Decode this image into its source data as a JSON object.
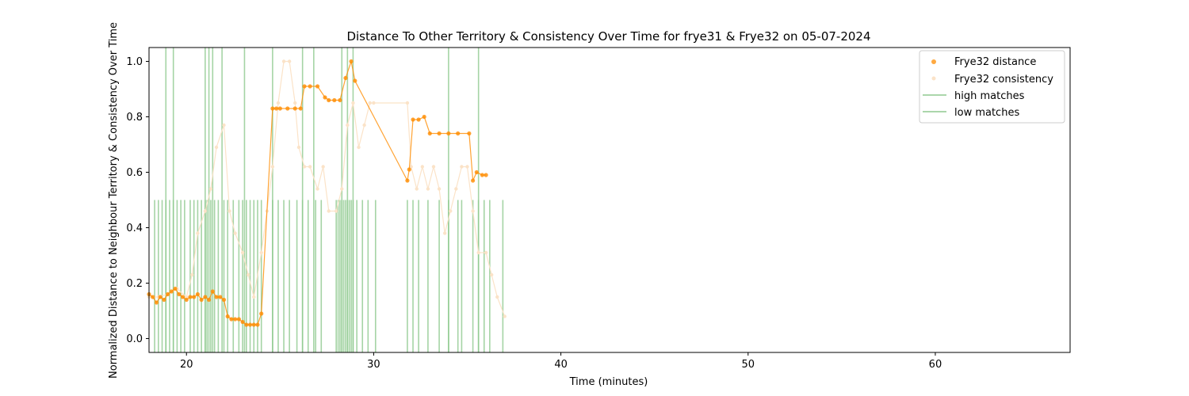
{
  "chart_data": {
    "type": "scatter",
    "title": "Distance To Other Territory & Consistency Over Time for frye31 & Frye32 on 05-07-2024",
    "xlabel": "Time (minutes)",
    "ylabel": "Normalized Distance to Neighbour Territory & Consistency Over Time",
    "xlim": [
      18,
      67.2
    ],
    "ylim": [
      -0.05,
      1.05
    ],
    "xticks": [
      20,
      30,
      40,
      50,
      60
    ],
    "yticks": [
      0.0,
      0.2,
      0.4,
      0.6,
      0.8,
      1.0
    ],
    "xtick_labels": [
      "20",
      "30",
      "40",
      "50",
      "60"
    ],
    "ytick_labels": [
      "0.0",
      "0.2",
      "0.4",
      "0.6",
      "0.8",
      "1.0"
    ],
    "grid": false,
    "legend_position": "top-right",
    "colors": {
      "distance": "#ff8c00",
      "consistency": "#fbe3c8",
      "matches": "#8fc98f"
    },
    "series": [
      {
        "name": "Frye32 distance",
        "kind": "scatter-line",
        "x": [
          18.0,
          18.2,
          18.4,
          18.6,
          18.8,
          19.0,
          19.2,
          19.4,
          19.6,
          19.8,
          20.0,
          20.2,
          20.4,
          20.6,
          20.8,
          21.0,
          21.2,
          21.4,
          21.6,
          21.8,
          22.0,
          22.2,
          22.4,
          22.6,
          22.8,
          23.0,
          23.2,
          23.4,
          23.6,
          23.8,
          24.0,
          24.6,
          24.8,
          25.0,
          25.4,
          25.8,
          26.1,
          26.3,
          26.6,
          27.0,
          27.4,
          27.6,
          27.9,
          28.2,
          28.5,
          28.8,
          29.0,
          31.8,
          31.9,
          32.1,
          32.4,
          32.7,
          33.0,
          33.5,
          34.0,
          34.5,
          35.1,
          35.3,
          35.5,
          35.8,
          36.0
        ],
        "y": [
          0.16,
          0.15,
          0.13,
          0.15,
          0.14,
          0.16,
          0.17,
          0.18,
          0.16,
          0.15,
          0.14,
          0.15,
          0.15,
          0.16,
          0.14,
          0.15,
          0.14,
          0.17,
          0.15,
          0.15,
          0.14,
          0.08,
          0.07,
          0.07,
          0.07,
          0.06,
          0.05,
          0.05,
          0.05,
          0.05,
          0.09,
          0.83,
          0.83,
          0.83,
          0.83,
          0.83,
          0.83,
          0.91,
          0.91,
          0.91,
          0.87,
          0.86,
          0.86,
          0.86,
          0.94,
          1.0,
          0.93,
          0.57,
          0.61,
          0.79,
          0.79,
          0.8,
          0.74,
          0.74,
          0.74,
          0.74,
          0.74,
          0.57,
          0.6,
          0.59,
          0.59
        ]
      },
      {
        "name": "Frye32 consistency",
        "kind": "scatter-line",
        "x": [
          18.0,
          18.5,
          19.0,
          19.5,
          20.0,
          20.3,
          20.6,
          21.0,
          21.3,
          21.6,
          22.0,
          22.3,
          22.6,
          23.0,
          23.3,
          23.6,
          24.0,
          24.3,
          24.6,
          24.9,
          25.2,
          25.5,
          25.8,
          26.0,
          26.3,
          26.6,
          27.0,
          27.3,
          27.6,
          28.0,
          28.3,
          28.6,
          28.9,
          29.2,
          29.5,
          29.8,
          30.0,
          31.8,
          32.0,
          32.3,
          32.6,
          32.9,
          33.2,
          33.5,
          33.8,
          34.1,
          34.4,
          34.7,
          35.0,
          35.3,
          35.6,
          36.0,
          36.3,
          36.6,
          37.0
        ],
        "y": [
          0.15,
          0.15,
          0.16,
          0.18,
          0.15,
          0.23,
          0.38,
          0.46,
          0.54,
          0.69,
          0.77,
          0.46,
          0.38,
          0.31,
          0.23,
          0.15,
          0.31,
          0.46,
          0.62,
          0.85,
          1.0,
          1.0,
          0.85,
          0.69,
          0.62,
          0.62,
          0.54,
          0.62,
          0.46,
          0.46,
          0.54,
          0.77,
          0.85,
          0.69,
          0.77,
          0.85,
          0.85,
          0.85,
          0.62,
          0.54,
          0.62,
          0.54,
          0.62,
          0.54,
          0.38,
          0.46,
          0.54,
          0.62,
          0.62,
          0.46,
          0.31,
          0.31,
          0.23,
          0.15,
          0.08
        ]
      },
      {
        "name": "high matches",
        "kind": "vlines",
        "ymax": 1.05,
        "x": [
          18.9,
          19.3,
          21.0,
          21.2,
          21.4,
          21.9,
          23.1,
          24.6,
          26.2,
          26.8,
          28.3,
          28.6,
          28.9,
          34.0,
          35.6
        ]
      },
      {
        "name": "low matches",
        "kind": "vlines",
        "ymax": 0.5,
        "x": [
          18.3,
          18.5,
          18.7,
          18.9,
          19.1,
          19.3,
          19.5,
          19.7,
          19.9,
          20.2,
          20.4,
          20.6,
          20.8,
          21.0,
          21.1,
          21.3,
          21.5,
          21.7,
          22.0,
          22.2,
          22.5,
          22.8,
          23.0,
          23.2,
          23.4,
          23.6,
          23.8,
          24.0,
          24.6,
          24.9,
          25.2,
          25.5,
          25.9,
          26.2,
          26.5,
          26.9,
          27.2,
          28.0,
          28.1,
          28.2,
          28.3,
          28.4,
          28.5,
          28.6,
          28.7,
          28.8,
          28.9,
          29.1,
          29.4,
          29.7,
          30.1,
          31.8,
          32.1,
          32.4,
          32.9,
          33.5,
          34.0,
          34.5,
          34.7,
          35.3,
          35.6,
          35.9,
          36.2,
          36.9
        ]
      }
    ]
  }
}
